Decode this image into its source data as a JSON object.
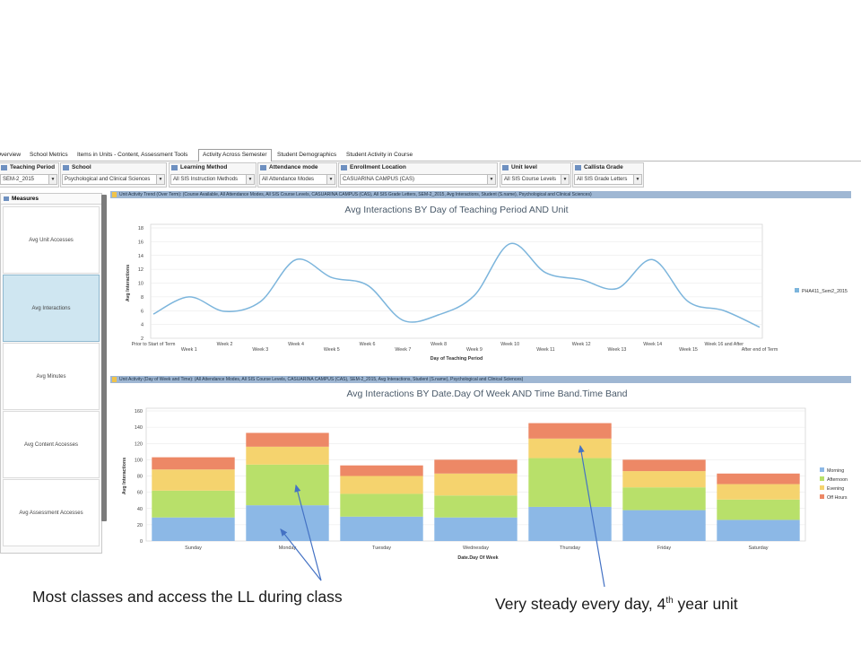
{
  "tabs": [
    "Overview",
    "School Metrics",
    "Items in Units - Content, Assessment Tools",
    "Activity Across Semester",
    "Student Demographics",
    "Student Activity in Course"
  ],
  "active_tab": "Activity Across Semester",
  "filters": [
    {
      "label": "Teaching Period",
      "value": "SEM-2_2015"
    },
    {
      "label": "School",
      "value": "Psychological and Clinical Sciences"
    },
    {
      "label": "Learning Method",
      "value": "All SIS Instruction Methods"
    },
    {
      "label": "Attendance mode",
      "value": "All Attendance Modes"
    },
    {
      "label": "Enrollment Location",
      "value": "CASUARINA CAMPUS (CAS)"
    },
    {
      "label": "Unit level",
      "value": "All SIS Course Levels"
    },
    {
      "label": "Callista Grade",
      "value": "All SIS Grade Letters"
    }
  ],
  "measures": {
    "title": "Measures",
    "items": [
      "Avg Unit Accesses",
      "Avg Interactions",
      "Avg Minutes",
      "Avg Content Accesses",
      "Avg Assessment Accesses"
    ],
    "selected": "Avg Interactions"
  },
  "panel1": {
    "header": "Unit Activity Trend (Over Term): (Course Available, All Attendance Modes, All SIS Course Levels, CASUARINA CAMPUS (CAS), All SIS Grade Letters, SEM-2_2015, Avg Interactions, Student (S.name), Psychological and Clinical Sciences)"
  },
  "panel2": {
    "header": "Unit Activity (Day of Week and Time): (All Attendance Modes, All SIS Course Levels, CASUARINA CAMPUS (CAS), SEM-2_2015, Avg Interactions, Student (S.name), Psychological and Clinical Sciences)"
  },
  "chart_data": [
    {
      "type": "line",
      "title": "Avg Interactions BY Day of Teaching Period AND Unit",
      "xlabel": "Day of Teaching Period",
      "ylabel": "Avg Interactions",
      "ylim": [
        2,
        18
      ],
      "yticks": [
        2,
        4,
        6,
        8,
        10,
        12,
        14,
        16,
        18
      ],
      "categories": [
        "Prior to Start of Term",
        "Week 1",
        "Week 2",
        "Week 3",
        "Week 4",
        "Week 5",
        "Week 6",
        "Week 7",
        "Week 8",
        "Week 9",
        "Week 10",
        "Week 11",
        "Week 12",
        "Week 13",
        "Week 14",
        "Week 15",
        "Week 16 and After",
        "After end of Term"
      ],
      "series": [
        {
          "name": "PHA411_Sem2_2015",
          "color": "#7cb5dc",
          "values": [
            5.5,
            8.0,
            5.9,
            7.3,
            13.4,
            10.8,
            9.7,
            4.6,
            5.4,
            8.2,
            15.7,
            11.5,
            10.5,
            9.2,
            13.4,
            7.3,
            6.0,
            3.6
          ]
        }
      ],
      "legend": "right"
    },
    {
      "type": "bar",
      "stacked": true,
      "title": "Avg Interactions BY Date.Day Of Week AND Time Band.Time Band",
      "xlabel": "Date.Day Of Week",
      "ylabel": "Avg Interactions",
      "ylim": [
        0,
        160
      ],
      "yticks": [
        0,
        20,
        40,
        60,
        80,
        100,
        120,
        140,
        160
      ],
      "categories": [
        "Sunday",
        "Monday",
        "Tuesday",
        "Wednesday",
        "Thursday",
        "Friday",
        "Saturday"
      ],
      "series": [
        {
          "name": "Morning",
          "color": "#8cb8e6",
          "values": [
            29,
            44,
            30,
            29,
            42,
            38,
            26
          ]
        },
        {
          "name": "Afternoon",
          "color": "#b8e06a",
          "values": [
            33,
            50,
            28,
            27,
            60,
            28,
            25
          ]
        },
        {
          "name": "Evening",
          "color": "#f5d36e",
          "values": [
            26,
            22,
            22,
            27,
            24,
            20,
            19
          ]
        },
        {
          "name": "Off Hours",
          "color": "#ed8866",
          "values": [
            15,
            17,
            13,
            17,
            19,
            14,
            13
          ]
        }
      ],
      "legend": "right"
    }
  ],
  "annotations": {
    "left": "Most classes and access the LL during class",
    "right_main": "Very steady every day, 4",
    "right_sup": "th",
    "right_end": " year unit"
  }
}
